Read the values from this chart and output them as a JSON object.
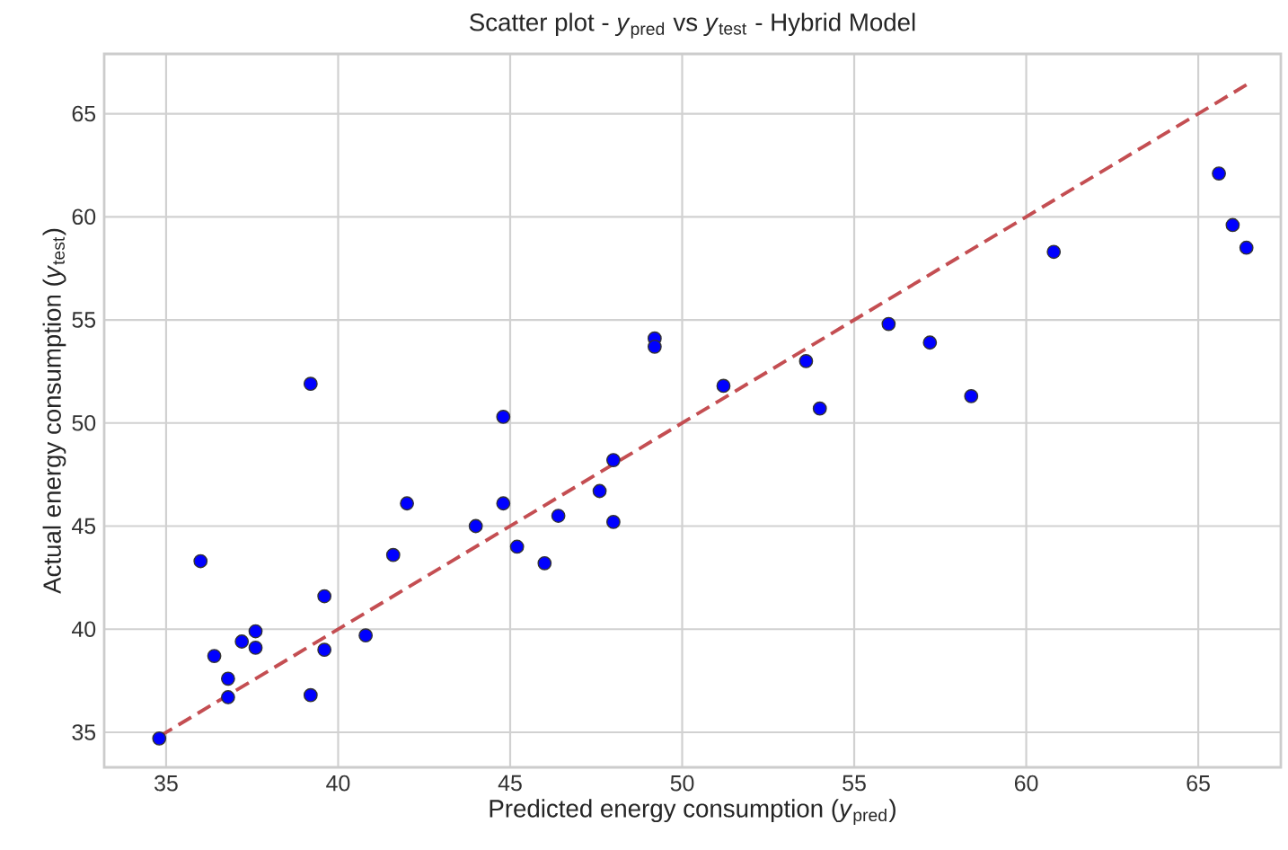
{
  "chart_data": {
    "type": "scatter",
    "title": "Scatter plot - *y*$_{pred}$ vs *y*$_{test}$ - Hybrid Model",
    "xlabel": "Predicted energy consumption (*y*$_{pred}$)",
    "ylabel": "Actual energy consumption (*y*$_{test}$)",
    "xlim": [
      33.2,
      67.4
    ],
    "ylim": [
      33.3,
      67.9
    ],
    "xticks": [
      35,
      40,
      45,
      50,
      55,
      60,
      65
    ],
    "yticks": [
      35,
      40,
      45,
      50,
      55,
      60,
      65
    ],
    "grid": true,
    "series": [
      {
        "marker": "circle",
        "color": "#0000ff",
        "x": [
          34.8,
          36.0,
          36.4,
          36.8,
          36.8,
          37.2,
          37.6,
          37.6,
          39.2,
          39.2,
          39.6,
          39.6,
          40.8,
          41.6,
          42.0,
          44.0,
          44.8,
          44.8,
          45.2,
          46.0,
          46.4,
          47.6,
          48.0,
          48.0,
          49.2,
          49.2,
          51.2,
          53.6,
          54.0,
          56.0,
          57.2,
          58.4,
          60.8,
          65.6,
          66.0,
          66.4
        ],
        "values": [
          34.7,
          43.3,
          38.7,
          37.6,
          36.7,
          39.4,
          39.9,
          39.1,
          51.9,
          36.8,
          41.6,
          39.0,
          39.7,
          43.6,
          46.1,
          45.0,
          50.3,
          46.1,
          44.0,
          43.2,
          45.5,
          46.7,
          48.2,
          45.2,
          54.1,
          53.7,
          51.8,
          53.0,
          50.7,
          54.8,
          53.9,
          51.3,
          58.3,
          62.1,
          59.6,
          58.5
        ]
      },
      {
        "type": "line",
        "marker": "none",
        "color": "#c44e52",
        "line_style": "dashed",
        "x": [
          34.8,
          66.4
        ],
        "values": [
          34.8,
          66.4
        ]
      }
    ]
  }
}
